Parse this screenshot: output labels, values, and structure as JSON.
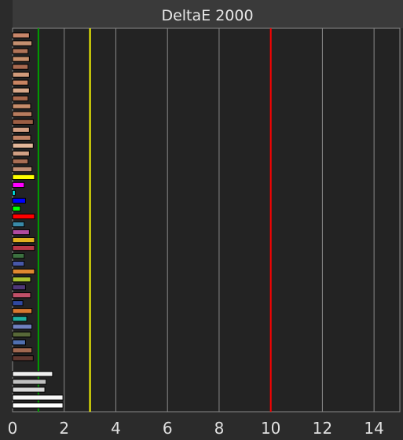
{
  "chart_data": {
    "type": "bar",
    "orientation": "horizontal",
    "title": "DeltaE 2000",
    "xlabel": "",
    "ylabel": "",
    "xlim": [
      0,
      15
    ],
    "x_ticks": [
      "0",
      "2",
      "4",
      "6",
      "8",
      "10",
      "12",
      "14"
    ],
    "grid": "vertical",
    "legend": "none",
    "reference_lines": [
      {
        "value": 1,
        "color": "#00a000"
      },
      {
        "value": 3,
        "color": "#ffff00"
      },
      {
        "value": 10,
        "color": "#ff0000"
      }
    ],
    "bars": [
      {
        "value": 0.65,
        "color": "#c8866a"
      },
      {
        "value": 0.75,
        "color": "#c49070"
      },
      {
        "value": 0.6,
        "color": "#b07458"
      },
      {
        "value": 0.65,
        "color": "#c8906c"
      },
      {
        "value": 0.6,
        "color": "#a86a50"
      },
      {
        "value": 0.65,
        "color": "#d09a7a"
      },
      {
        "value": 0.6,
        "color": "#c88462"
      },
      {
        "value": 0.65,
        "color": "#d8a88a"
      },
      {
        "value": 0.6,
        "color": "#a8684c"
      },
      {
        "value": 0.7,
        "color": "#c68c6a"
      },
      {
        "value": 0.75,
        "color": "#b87c5e"
      },
      {
        "value": 0.8,
        "color": "#9c5e44"
      },
      {
        "value": 0.65,
        "color": "#d4a084"
      },
      {
        "value": 0.7,
        "color": "#c08264"
      },
      {
        "value": 0.8,
        "color": "#e2b698"
      },
      {
        "value": 0.65,
        "color": "#d0a084"
      },
      {
        "value": 0.6,
        "color": "#a86e54"
      },
      {
        "value": 0.75,
        "color": "#c08e74"
      },
      {
        "value": 0.85,
        "color": "#ffff00"
      },
      {
        "value": 0.45,
        "color": "#ff00ff"
      },
      {
        "value": 0.1,
        "color": "#00ffff"
      },
      {
        "value": 0.5,
        "color": "#0000ff"
      },
      {
        "value": 0.3,
        "color": "#00ff00"
      },
      {
        "value": 0.85,
        "color": "#ff0000"
      },
      {
        "value": 0.45,
        "color": "#3a8aa8"
      },
      {
        "value": 0.65,
        "color": "#b04aa0"
      },
      {
        "value": 0.85,
        "color": "#e0b020"
      },
      {
        "value": 0.85,
        "color": "#b83848"
      },
      {
        "value": 0.45,
        "color": "#3c7040"
      },
      {
        "value": 0.45,
        "color": "#4858a8"
      },
      {
        "value": 0.85,
        "color": "#e08830"
      },
      {
        "value": 0.7,
        "color": "#a8c030"
      },
      {
        "value": 0.5,
        "color": "#503878"
      },
      {
        "value": 0.7,
        "color": "#c05068"
      },
      {
        "value": 0.4,
        "color": "#3048a0"
      },
      {
        "value": 0.75,
        "color": "#d87830"
      },
      {
        "value": 0.55,
        "color": "#20b0a0"
      },
      {
        "value": 0.75,
        "color": "#7080c0"
      },
      {
        "value": 0.7,
        "color": "#586838"
      },
      {
        "value": 0.5,
        "color": "#5070b0"
      },
      {
        "value": 0.75,
        "color": "#a06850"
      },
      {
        "value": 0.8,
        "color": "#603830"
      },
      {
        "value": 0.0,
        "color": "#404040"
      },
      {
        "value": 1.55,
        "color": "#f0f0f0"
      },
      {
        "value": 1.3,
        "color": "#c0c0c0"
      },
      {
        "value": 1.25,
        "color": "#d8d8d8"
      },
      {
        "value": 1.95,
        "color": "#f8f8f8"
      },
      {
        "value": 1.95,
        "color": "#ffffff"
      }
    ]
  }
}
